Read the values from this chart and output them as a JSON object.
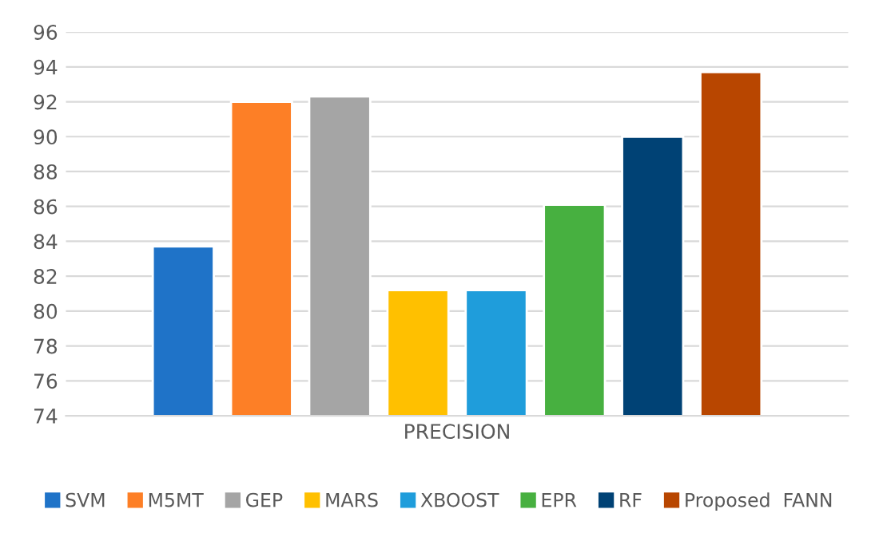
{
  "chart_data": {
    "type": "bar",
    "categories": [
      "PRECISION"
    ],
    "series": [
      {
        "name": "SVM",
        "color": "#1f73c8",
        "values": [
          83.7
        ]
      },
      {
        "name": "M5MT",
        "color": "#fd7f26",
        "values": [
          92.0
        ]
      },
      {
        "name": "GEP",
        "color": "#a5a5a5",
        "values": [
          92.3
        ]
      },
      {
        "name": "MARS",
        "color": "#ffc000",
        "values": [
          81.2
        ]
      },
      {
        "name": "XBOOST",
        "color": "#1f9ddb",
        "values": [
          81.2
        ]
      },
      {
        "name": "EPR",
        "color": "#47b040",
        "values": [
          86.1
        ]
      },
      {
        "name": "RF",
        "color": "#004275",
        "values": [
          90.0
        ]
      },
      {
        "name": "Proposed  FANN",
        "color": "#b84600",
        "values": [
          93.7
        ]
      }
    ],
    "ylim": [
      74,
      96
    ],
    "yticks": [
      74,
      76,
      78,
      80,
      82,
      84,
      86,
      88,
      90,
      92,
      94,
      96
    ],
    "grid": "y",
    "legend": "bottom"
  }
}
